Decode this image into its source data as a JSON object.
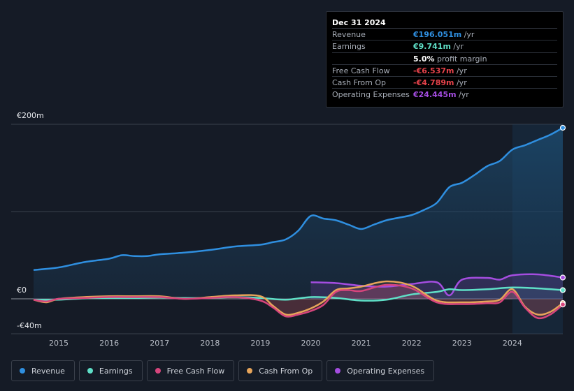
{
  "tooltip": {
    "date": "Dec 31 2024",
    "rows": [
      {
        "label": "Revenue",
        "value": "€196.051m",
        "unit": " /yr",
        "color": "#2f8fe0"
      },
      {
        "label": "Earnings",
        "value": "€9.741m",
        "unit": " /yr",
        "color": "#5fdfc7"
      },
      {
        "label": "",
        "value": "5.0%",
        "unit": " profit margin",
        "color": "#ffffff"
      },
      {
        "label": "Free Cash Flow",
        "value": "-€6.537m",
        "unit": " /yr",
        "color": "#e5424a"
      },
      {
        "label": "Cash From Op",
        "value": "-€4.789m",
        "unit": " /yr",
        "color": "#e5424a"
      },
      {
        "label": "Operating Expenses",
        "value": "€24.445m",
        "unit": " /yr",
        "color": "#a44de0"
      }
    ]
  },
  "legend": [
    {
      "label": "Revenue",
      "color": "#2f8fe0"
    },
    {
      "label": "Earnings",
      "color": "#5fdfc7"
    },
    {
      "label": "Free Cash Flow",
      "color": "#d6457c"
    },
    {
      "label": "Cash From Op",
      "color": "#e6a45a"
    },
    {
      "label": "Operating Expenses",
      "color": "#a44de0"
    }
  ],
  "chart_data": {
    "type": "area",
    "unit": "€m",
    "y_labels": [
      "€200m",
      "€0",
      "-€40m"
    ],
    "ylim": [
      -40,
      200
    ],
    "x_labels": [
      "2015",
      "2016",
      "2017",
      "2018",
      "2019",
      "2020",
      "2021",
      "2022",
      "2023",
      "2024"
    ],
    "xlim": [
      2014.5,
      2025.0
    ],
    "highlight_start": 2024.0,
    "series": [
      {
        "name": "Revenue",
        "color": "#2f8fe0",
        "points": [
          [
            2014.5,
            33
          ],
          [
            2015.0,
            36
          ],
          [
            2015.5,
            42
          ],
          [
            2016.0,
            46
          ],
          [
            2016.25,
            50
          ],
          [
            2016.5,
            49
          ],
          [
            2016.75,
            49
          ],
          [
            2017.0,
            51
          ],
          [
            2017.5,
            53
          ],
          [
            2018.0,
            56
          ],
          [
            2018.5,
            60
          ],
          [
            2019.0,
            62
          ],
          [
            2019.25,
            65
          ],
          [
            2019.5,
            68
          ],
          [
            2019.75,
            78
          ],
          [
            2020.0,
            95
          ],
          [
            2020.25,
            92
          ],
          [
            2020.5,
            90
          ],
          [
            2020.75,
            85
          ],
          [
            2021.0,
            80
          ],
          [
            2021.25,
            85
          ],
          [
            2021.5,
            90
          ],
          [
            2021.75,
            93
          ],
          [
            2022.0,
            96
          ],
          [
            2022.25,
            102
          ],
          [
            2022.5,
            110
          ],
          [
            2022.75,
            128
          ],
          [
            2023.0,
            133
          ],
          [
            2023.25,
            142
          ],
          [
            2023.5,
            152
          ],
          [
            2023.75,
            158
          ],
          [
            2024.0,
            171
          ],
          [
            2024.25,
            176
          ],
          [
            2024.5,
            182
          ],
          [
            2024.75,
            188
          ],
          [
            2025.0,
            196
          ]
        ]
      },
      {
        "name": "Earnings",
        "color": "#5fdfc7",
        "points": [
          [
            2014.5,
            -1
          ],
          [
            2015.0,
            -1
          ],
          [
            2015.5,
            0.5
          ],
          [
            2016.0,
            1
          ],
          [
            2016.5,
            1
          ],
          [
            2017.0,
            1.5
          ],
          [
            2017.5,
            1
          ],
          [
            2018.0,
            1
          ],
          [
            2018.5,
            2
          ],
          [
            2019.0,
            1
          ],
          [
            2019.5,
            -1
          ],
          [
            2020.0,
            2
          ],
          [
            2020.5,
            1
          ],
          [
            2021.0,
            -2
          ],
          [
            2021.5,
            -1
          ],
          [
            2022.0,
            5
          ],
          [
            2022.5,
            8
          ],
          [
            2022.75,
            11
          ],
          [
            2023.0,
            10
          ],
          [
            2023.5,
            11
          ],
          [
            2024.0,
            13
          ],
          [
            2024.5,
            12
          ],
          [
            2025.0,
            10
          ]
        ]
      },
      {
        "name": "Free Cash Flow",
        "color": "#d6457c",
        "points": [
          [
            2014.5,
            -1
          ],
          [
            2014.75,
            -3
          ],
          [
            2015.0,
            0
          ],
          [
            2015.5,
            1
          ],
          [
            2016.0,
            2
          ],
          [
            2016.5,
            2
          ],
          [
            2017.0,
            2
          ],
          [
            2017.5,
            0
          ],
          [
            2018.0,
            1
          ],
          [
            2018.5,
            2
          ],
          [
            2019.0,
            -2
          ],
          [
            2019.25,
            -10
          ],
          [
            2019.5,
            -20
          ],
          [
            2019.75,
            -18
          ],
          [
            2020.0,
            -14
          ],
          [
            2020.25,
            -7
          ],
          [
            2020.5,
            8
          ],
          [
            2020.75,
            10
          ],
          [
            2021.0,
            9
          ],
          [
            2021.5,
            16
          ],
          [
            2022.0,
            12
          ],
          [
            2022.5,
            -4
          ],
          [
            2023.0,
            -6
          ],
          [
            2023.5,
            -5
          ],
          [
            2023.75,
            -4
          ],
          [
            2024.0,
            8
          ],
          [
            2024.25,
            -10
          ],
          [
            2024.5,
            -22
          ],
          [
            2024.75,
            -18
          ],
          [
            2025.0,
            -6.5
          ]
        ]
      },
      {
        "name": "Cash From Op",
        "color": "#e6a45a",
        "points": [
          [
            2014.5,
            -1
          ],
          [
            2014.75,
            -4
          ],
          [
            2015.0,
            0
          ],
          [
            2015.5,
            2
          ],
          [
            2016.0,
            3
          ],
          [
            2016.5,
            3
          ],
          [
            2017.0,
            3
          ],
          [
            2017.5,
            0
          ],
          [
            2018.0,
            2
          ],
          [
            2018.5,
            4
          ],
          [
            2019.0,
            3
          ],
          [
            2019.25,
            -8
          ],
          [
            2019.5,
            -18
          ],
          [
            2019.75,
            -16
          ],
          [
            2020.0,
            -11
          ],
          [
            2020.25,
            -3
          ],
          [
            2020.5,
            10
          ],
          [
            2020.75,
            12
          ],
          [
            2021.0,
            14
          ],
          [
            2021.5,
            20
          ],
          [
            2022.0,
            15
          ],
          [
            2022.5,
            -2
          ],
          [
            2023.0,
            -4
          ],
          [
            2023.5,
            -3
          ],
          [
            2023.75,
            -1
          ],
          [
            2024.0,
            11
          ],
          [
            2024.25,
            -9
          ],
          [
            2024.5,
            -18
          ],
          [
            2024.75,
            -15
          ],
          [
            2025.0,
            -4.8
          ]
        ]
      },
      {
        "name": "Operating Expenses",
        "color": "#a44de0",
        "points": [
          [
            2020.0,
            19
          ],
          [
            2020.5,
            18
          ],
          [
            2021.0,
            15
          ],
          [
            2021.5,
            14
          ],
          [
            2022.0,
            17
          ],
          [
            2022.5,
            19
          ],
          [
            2022.75,
            4
          ],
          [
            2023.0,
            22
          ],
          [
            2023.5,
            24
          ],
          [
            2023.75,
            22
          ],
          [
            2024.0,
            27
          ],
          [
            2024.5,
            28
          ],
          [
            2025.0,
            24.4
          ]
        ]
      }
    ]
  }
}
